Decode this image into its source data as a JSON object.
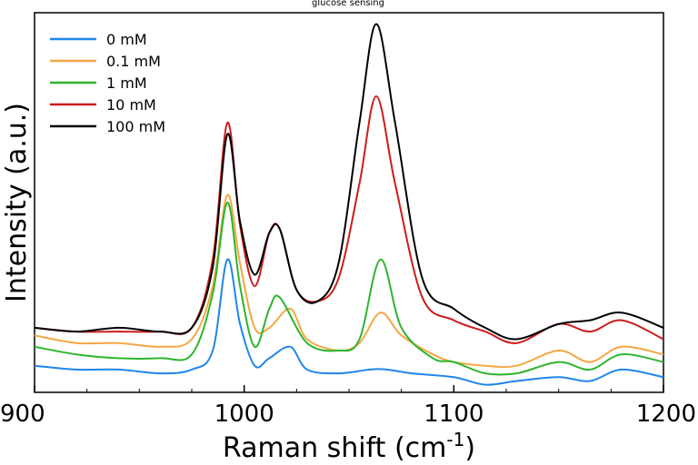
{
  "chart_data": {
    "type": "line",
    "title": "glucose sensing",
    "xlabel": "Raman shift (cm",
    "xlabel_sup": "-1",
    "xlabel_close": ")",
    "ylabel": "Intensity (a.u.)",
    "xlim": [
      900,
      1200
    ],
    "ylim": [
      0,
      1.0
    ],
    "x_ticks": [
      900,
      1000,
      1100,
      1200
    ],
    "x_tick_labels": [
      "900",
      "1000",
      "1100",
      "1200"
    ],
    "y_ticks_shown": false,
    "grid": false,
    "legend_position": "top-left",
    "series": [
      {
        "name": "0 mM",
        "color": "#1f87e8",
        "points": [
          [
            900,
            0.07
          ],
          [
            920,
            0.06
          ],
          [
            940,
            0.06
          ],
          [
            960,
            0.05
          ],
          [
            975,
            0.06
          ],
          [
            985,
            0.11
          ],
          [
            992,
            0.35
          ],
          [
            998,
            0.18
          ],
          [
            1005,
            0.07
          ],
          [
            1012,
            0.09
          ],
          [
            1022,
            0.12
          ],
          [
            1030,
            0.06
          ],
          [
            1045,
            0.05
          ],
          [
            1060,
            0.06
          ],
          [
            1068,
            0.06
          ],
          [
            1080,
            0.05
          ],
          [
            1100,
            0.04
          ],
          [
            1115,
            0.02
          ],
          [
            1130,
            0.03
          ],
          [
            1150,
            0.04
          ],
          [
            1165,
            0.03
          ],
          [
            1180,
            0.06
          ],
          [
            1200,
            0.04
          ]
        ]
      },
      {
        "name": "0.1 mM",
        "color": "#f5a742",
        "points": [
          [
            900,
            0.15
          ],
          [
            920,
            0.13
          ],
          [
            940,
            0.13
          ],
          [
            960,
            0.12
          ],
          [
            975,
            0.14
          ],
          [
            985,
            0.28
          ],
          [
            992,
            0.52
          ],
          [
            998,
            0.34
          ],
          [
            1005,
            0.17
          ],
          [
            1012,
            0.17
          ],
          [
            1022,
            0.22
          ],
          [
            1030,
            0.14
          ],
          [
            1045,
            0.11
          ],
          [
            1055,
            0.13
          ],
          [
            1065,
            0.21
          ],
          [
            1075,
            0.15
          ],
          [
            1090,
            0.1
          ],
          [
            1100,
            0.08
          ],
          [
            1115,
            0.07
          ],
          [
            1130,
            0.07
          ],
          [
            1150,
            0.11
          ],
          [
            1165,
            0.08
          ],
          [
            1180,
            0.12
          ],
          [
            1200,
            0.1
          ]
        ]
      },
      {
        "name": "1 mM",
        "color": "#2db52d",
        "points": [
          [
            900,
            0.12
          ],
          [
            920,
            0.1
          ],
          [
            940,
            0.09
          ],
          [
            960,
            0.09
          ],
          [
            975,
            0.1
          ],
          [
            985,
            0.26
          ],
          [
            992,
            0.5
          ],
          [
            998,
            0.28
          ],
          [
            1005,
            0.12
          ],
          [
            1012,
            0.22
          ],
          [
            1017,
            0.25
          ],
          [
            1030,
            0.13
          ],
          [
            1045,
            0.11
          ],
          [
            1055,
            0.14
          ],
          [
            1065,
            0.35
          ],
          [
            1075,
            0.17
          ],
          [
            1090,
            0.09
          ],
          [
            1100,
            0.08
          ],
          [
            1115,
            0.05
          ],
          [
            1130,
            0.05
          ],
          [
            1150,
            0.08
          ],
          [
            1165,
            0.06
          ],
          [
            1180,
            0.1
          ],
          [
            1200,
            0.08
          ]
        ]
      },
      {
        "name": "10 mM",
        "color": "#cc1c1c",
        "points": [
          [
            900,
            0.17
          ],
          [
            920,
            0.16
          ],
          [
            940,
            0.16
          ],
          [
            960,
            0.16
          ],
          [
            975,
            0.17
          ],
          [
            985,
            0.35
          ],
          [
            992,
            0.71
          ],
          [
            998,
            0.44
          ],
          [
            1005,
            0.28
          ],
          [
            1012,
            0.42
          ],
          [
            1017,
            0.43
          ],
          [
            1025,
            0.27
          ],
          [
            1035,
            0.24
          ],
          [
            1045,
            0.3
          ],
          [
            1055,
            0.55
          ],
          [
            1063,
            0.78
          ],
          [
            1072,
            0.55
          ],
          [
            1085,
            0.25
          ],
          [
            1100,
            0.19
          ],
          [
            1115,
            0.16
          ],
          [
            1130,
            0.13
          ],
          [
            1150,
            0.18
          ],
          [
            1165,
            0.16
          ],
          [
            1180,
            0.19
          ],
          [
            1200,
            0.14
          ]
        ]
      },
      {
        "name": "100 mM",
        "color": "#000000",
        "points": [
          [
            900,
            0.17
          ],
          [
            920,
            0.16
          ],
          [
            940,
            0.17
          ],
          [
            960,
            0.16
          ],
          [
            975,
            0.17
          ],
          [
            985,
            0.33
          ],
          [
            992,
            0.68
          ],
          [
            998,
            0.45
          ],
          [
            1005,
            0.31
          ],
          [
            1012,
            0.42
          ],
          [
            1017,
            0.43
          ],
          [
            1025,
            0.27
          ],
          [
            1035,
            0.24
          ],
          [
            1045,
            0.34
          ],
          [
            1055,
            0.71
          ],
          [
            1063,
            0.97
          ],
          [
            1072,
            0.71
          ],
          [
            1085,
            0.3
          ],
          [
            1100,
            0.22
          ],
          [
            1115,
            0.17
          ],
          [
            1130,
            0.14
          ],
          [
            1150,
            0.18
          ],
          [
            1165,
            0.19
          ],
          [
            1180,
            0.21
          ],
          [
            1200,
            0.17
          ]
        ]
      }
    ]
  }
}
